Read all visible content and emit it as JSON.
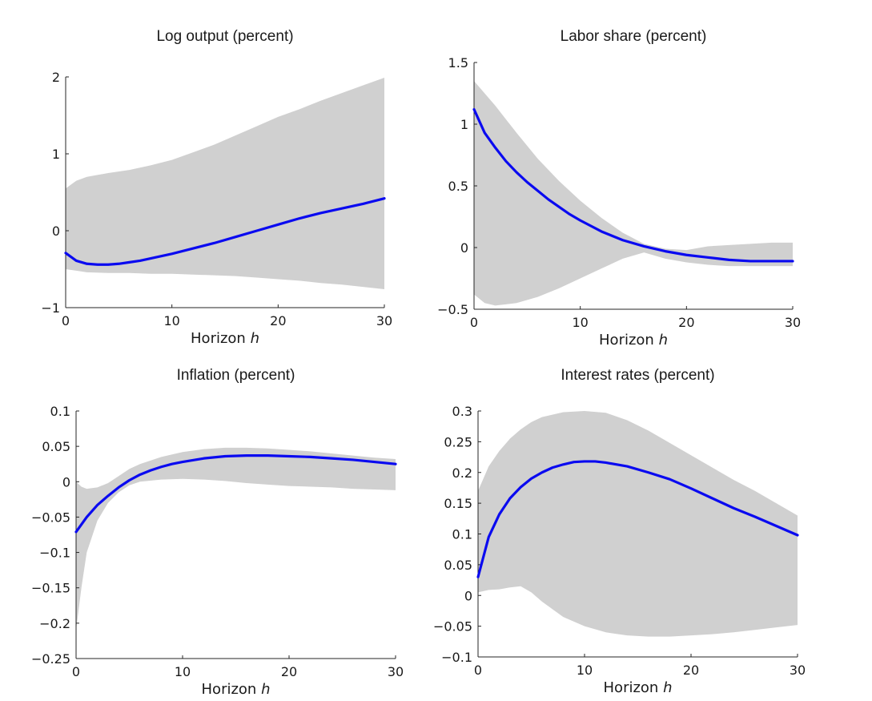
{
  "colors": {
    "line": "#0a0af0",
    "band": "#d0d0d0",
    "axis": "#262626"
  },
  "chart_data": [
    {
      "type": "area",
      "title": "Log output (percent)",
      "xlabel": "Horizon",
      "xlabel_var": "h",
      "xlim": [
        0,
        30
      ],
      "ylim": [
        -1,
        2
      ],
      "xticks": [
        0,
        10,
        20,
        30
      ],
      "xtick_labels": [
        "0",
        "10",
        "20",
        "30"
      ],
      "yticks": [
        -1,
        0,
        1,
        2
      ],
      "ytick_labels": [
        "−1",
        "0",
        "1",
        "2"
      ],
      "grid": false,
      "series": [
        {
          "kind": "line",
          "x": [
            0,
            1,
            2,
            3,
            4,
            5,
            6,
            7,
            8,
            9,
            10,
            12,
            14,
            16,
            18,
            20,
            22,
            24,
            26,
            28,
            30
          ],
          "y": [
            -0.29,
            -0.39,
            -0.43,
            -0.44,
            -0.44,
            -0.43,
            -0.41,
            -0.39,
            -0.36,
            -0.33,
            -0.3,
            -0.23,
            -0.16,
            -0.08,
            0.0,
            0.08,
            0.16,
            0.23,
            0.29,
            0.35,
            0.42
          ]
        },
        {
          "kind": "band",
          "x": [
            0,
            1,
            2,
            4,
            6,
            8,
            10,
            12,
            14,
            16,
            18,
            20,
            22,
            24,
            26,
            28,
            30
          ],
          "lower": [
            -0.5,
            -0.52,
            -0.54,
            -0.55,
            -0.55,
            -0.56,
            -0.56,
            -0.57,
            -0.58,
            -0.59,
            -0.61,
            -0.63,
            -0.65,
            -0.68,
            -0.7,
            -0.73,
            -0.76
          ],
          "upper": [
            0.55,
            0.65,
            0.7,
            0.75,
            0.79,
            0.85,
            0.92,
            1.02,
            1.12,
            1.24,
            1.36,
            1.48,
            1.58,
            1.69,
            1.79,
            1.89,
            1.99
          ]
        }
      ]
    },
    {
      "type": "area",
      "title": "Labor share (percent)",
      "xlabel": "Horizon",
      "xlabel_var": "h",
      "xlim": [
        0,
        30
      ],
      "ylim": [
        -0.5,
        1.5
      ],
      "xticks": [
        0,
        10,
        20,
        30
      ],
      "xtick_labels": [
        "0",
        "10",
        "20",
        "30"
      ],
      "yticks": [
        -0.5,
        0,
        0.5,
        1,
        1.5
      ],
      "ytick_labels": [
        "−0.5",
        "0",
        "0.5",
        "1",
        "1.5"
      ],
      "grid": false,
      "series": [
        {
          "kind": "line",
          "x": [
            0,
            1,
            2,
            3,
            4,
            5,
            6,
            7,
            8,
            9,
            10,
            12,
            14,
            16,
            18,
            20,
            22,
            24,
            26,
            28,
            30
          ],
          "y": [
            1.12,
            0.93,
            0.81,
            0.7,
            0.61,
            0.53,
            0.46,
            0.39,
            0.33,
            0.27,
            0.22,
            0.13,
            0.06,
            0.01,
            -0.03,
            -0.06,
            -0.08,
            -0.1,
            -0.11,
            -0.11,
            -0.11
          ]
        },
        {
          "kind": "band",
          "x": [
            0,
            1,
            2,
            4,
            6,
            8,
            10,
            12,
            14,
            16,
            18,
            20,
            22,
            24,
            26,
            28,
            30
          ],
          "lower": [
            -0.38,
            -0.45,
            -0.47,
            -0.45,
            -0.4,
            -0.33,
            -0.25,
            -0.17,
            -0.09,
            -0.04,
            -0.09,
            -0.12,
            -0.14,
            -0.15,
            -0.15,
            -0.15,
            -0.15
          ],
          "upper": [
            1.35,
            1.25,
            1.15,
            0.93,
            0.72,
            0.54,
            0.38,
            0.24,
            0.12,
            0.03,
            -0.01,
            -0.02,
            0.01,
            0.02,
            0.03,
            0.04,
            0.04
          ]
        }
      ]
    },
    {
      "type": "area",
      "title": "Inflation (percent)",
      "xlabel": "Horizon",
      "xlabel_var": "h",
      "xlim": [
        0,
        30
      ],
      "ylim": [
        -0.25,
        0.1
      ],
      "xticks": [
        0,
        10,
        20,
        30
      ],
      "xtick_labels": [
        "0",
        "10",
        "20",
        "30"
      ],
      "yticks": [
        -0.25,
        -0.2,
        -0.15,
        -0.1,
        -0.05,
        0,
        0.05,
        0.1
      ],
      "ytick_labels": [
        "−0.25",
        "−0.2",
        "−0.15",
        "−0.1",
        "−0.05",
        "0",
        "0.05",
        "0.1"
      ],
      "grid": false,
      "series": [
        {
          "kind": "line",
          "x": [
            0,
            1,
            2,
            3,
            4,
            5,
            6,
            7,
            8,
            9,
            10,
            12,
            14,
            16,
            18,
            20,
            22,
            24,
            26,
            28,
            30
          ],
          "y": [
            -0.071,
            -0.05,
            -0.033,
            -0.02,
            -0.008,
            0.002,
            0.01,
            0.016,
            0.021,
            0.025,
            0.028,
            0.033,
            0.036,
            0.037,
            0.037,
            0.036,
            0.035,
            0.033,
            0.031,
            0.028,
            0.025
          ]
        },
        {
          "kind": "band",
          "x": [
            0,
            0.5,
            1,
            2,
            3,
            4,
            5,
            6,
            8,
            10,
            12,
            14,
            16,
            18,
            20,
            22,
            24,
            26,
            28,
            30
          ],
          "lower": [
            -0.21,
            -0.15,
            -0.1,
            -0.055,
            -0.03,
            -0.015,
            -0.005,
            0.0,
            0.003,
            0.004,
            0.003,
            0.001,
            -0.002,
            -0.004,
            -0.006,
            -0.007,
            -0.008,
            -0.01,
            -0.011,
            -0.012
          ],
          "upper": [
            0.0,
            -0.007,
            -0.01,
            -0.008,
            -0.002,
            0.008,
            0.018,
            0.025,
            0.035,
            0.042,
            0.046,
            0.048,
            0.048,
            0.047,
            0.045,
            0.043,
            0.04,
            0.037,
            0.034,
            0.032
          ]
        }
      ]
    },
    {
      "type": "area",
      "title": "Interest rates (percent)",
      "xlabel": "Horizon",
      "xlabel_var": "h",
      "xlim": [
        0,
        30
      ],
      "ylim": [
        -0.1,
        0.3
      ],
      "xticks": [
        0,
        10,
        20,
        30
      ],
      "xtick_labels": [
        "0",
        "10",
        "20",
        "30"
      ],
      "yticks": [
        -0.1,
        -0.05,
        0,
        0.05,
        0.1,
        0.15,
        0.2,
        0.25,
        0.3
      ],
      "ytick_labels": [
        "−0.1",
        "−0.05",
        "0",
        "0.05",
        "0.1",
        "0.15",
        "0.2",
        "0.25",
        "0.3"
      ],
      "grid": false,
      "series": [
        {
          "kind": "line",
          "x": [
            0,
            1,
            2,
            3,
            4,
            5,
            6,
            7,
            8,
            9,
            10,
            11,
            12,
            14,
            16,
            18,
            20,
            22,
            24,
            26,
            28,
            30
          ],
          "y": [
            0.03,
            0.095,
            0.132,
            0.158,
            0.176,
            0.19,
            0.2,
            0.208,
            0.213,
            0.217,
            0.218,
            0.218,
            0.216,
            0.21,
            0.2,
            0.189,
            0.174,
            0.158,
            0.142,
            0.128,
            0.113,
            0.098
          ]
        },
        {
          "kind": "band",
          "x": [
            0,
            1,
            2,
            3,
            4,
            5,
            6,
            8,
            10,
            12,
            14,
            16,
            18,
            20,
            22,
            24,
            26,
            28,
            30
          ],
          "lower": [
            0.005,
            0.009,
            0.01,
            0.013,
            0.015,
            0.005,
            -0.01,
            -0.035,
            -0.05,
            -0.06,
            -0.065,
            -0.067,
            -0.067,
            -0.065,
            -0.063,
            -0.06,
            -0.056,
            -0.052,
            -0.048
          ],
          "upper": [
            0.17,
            0.21,
            0.235,
            0.255,
            0.27,
            0.282,
            0.29,
            0.298,
            0.3,
            0.297,
            0.285,
            0.268,
            0.248,
            0.228,
            0.208,
            0.188,
            0.17,
            0.15,
            0.13
          ]
        }
      ]
    }
  ]
}
